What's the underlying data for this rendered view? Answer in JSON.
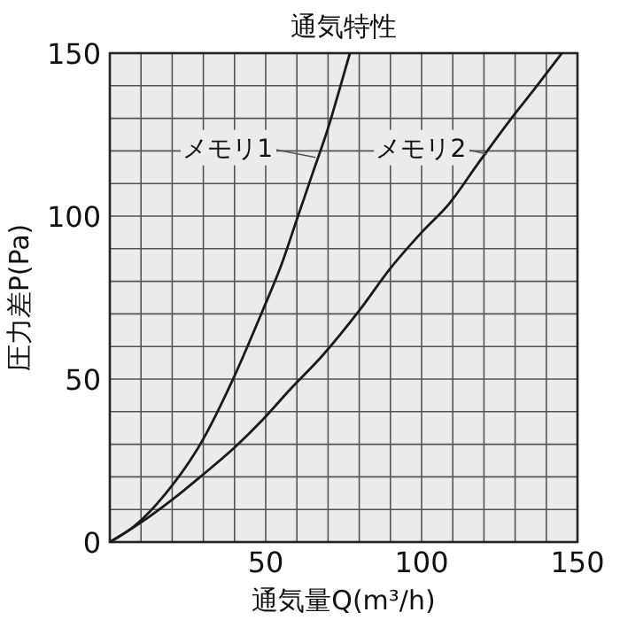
{
  "chart_data": {
    "type": "line",
    "title": "通気特性",
    "xlabel": "通気量Q(m³/h)",
    "ylabel": "圧力差P(Pa)",
    "xlim": [
      0,
      150
    ],
    "ylim": [
      0,
      150
    ],
    "xticks": [
      {
        "value": 0,
        "label": null
      },
      {
        "value": 10,
        "label": null
      },
      {
        "value": 20,
        "label": null
      },
      {
        "value": 30,
        "label": null
      },
      {
        "value": 40,
        "label": null
      },
      50,
      {
        "value": 60,
        "label": null
      },
      {
        "value": 70,
        "label": null
      },
      {
        "value": 80,
        "label": null
      },
      {
        "value": 90,
        "label": null
      },
      100,
      {
        "value": 110,
        "label": null
      },
      {
        "value": 120,
        "label": null
      },
      {
        "value": 130,
        "label": null
      },
      {
        "value": 140,
        "label": null
      },
      150
    ],
    "yticks": [
      0,
      {
        "value": 10,
        "label": null
      },
      {
        "value": 20,
        "label": null
      },
      {
        "value": 30,
        "label": null
      },
      {
        "value": 40,
        "label": null
      },
      50,
      {
        "value": 60,
        "label": null
      },
      {
        "value": 70,
        "label": null
      },
      {
        "value": 80,
        "label": null
      },
      {
        "value": 90,
        "label": null
      },
      100,
      {
        "value": 110,
        "label": null
      },
      {
        "value": 120,
        "label": null
      },
      {
        "value": 130,
        "label": null
      },
      {
        "value": 140,
        "label": null
      },
      150
    ],
    "grid": true,
    "marker": "none",
    "line_style": "solid",
    "series": [
      {
        "name": "メモリ1",
        "color": "#1a1a1a",
        "x": [
          0,
          8,
          18,
          29,
          40,
          49,
          55,
          60,
          65,
          70,
          74,
          77
        ],
        "values": [
          0,
          5,
          15,
          30,
          51,
          71,
          85,
          99,
          113,
          127,
          140,
          150
        ]
      },
      {
        "name": "メモリ2",
        "color": "#1a1a1a",
        "x": [
          0,
          10,
          20,
          29,
          40,
          49,
          58,
          68,
          80,
          90,
          100,
          109,
          118,
          128,
          137,
          145
        ],
        "values": [
          0,
          6,
          13,
          20,
          29,
          37.5,
          47,
          57,
          71,
          84,
          95,
          104,
          116,
          129,
          140,
          150
        ]
      }
    ]
  }
}
